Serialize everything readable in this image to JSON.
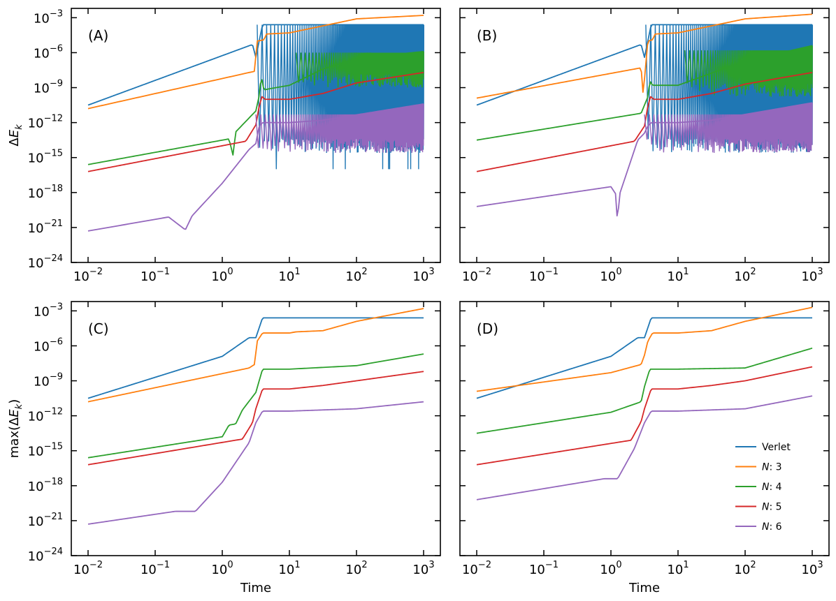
{
  "figure": {
    "shared_x_label": "Time",
    "legend": [
      {
        "label": "Verlet",
        "color": "#1f77b4"
      },
      {
        "label": "N: 3",
        "color": "#ff7f0e"
      },
      {
        "label": "N: 4",
        "color": "#2ca02c"
      },
      {
        "label": "N: 5",
        "color": "#d62728"
      },
      {
        "label": "N: 6",
        "color": "#9467bd"
      }
    ]
  },
  "chart_data": [
    {
      "panel": "(A)",
      "type": "line",
      "xscale": "log",
      "yscale": "log",
      "xlabel": "",
      "ylabel": "ΔE_k",
      "xlim_exp": [
        -2,
        3
      ],
      "ylim_exp": [
        -24,
        -2.2
      ],
      "xticks_exp": [
        -2,
        -1,
        0,
        1,
        2,
        3
      ],
      "yticks_exp": [
        -24,
        -21,
        -18,
        -15,
        -12,
        -9,
        -6,
        -3
      ],
      "oscillating": true,
      "series": [
        {
          "name": "Verlet",
          "color": "#1f77b4",
          "points": [
            [
              -2,
              -10.5
            ],
            [
              0.45,
              -5.3
            ],
            [
              0.5,
              -6.4
            ],
            [
              0.6,
              -3.6
            ],
            [
              3,
              -3.6
            ]
          ],
          "osc": {
            "start": 0.52,
            "top": -3.6,
            "bottom": -13.4,
            "deepest": -16
          }
        },
        {
          "name": "N: 3",
          "color": "#ff7f0e",
          "points": [
            [
              -2,
              -10.8
            ],
            [
              0.48,
              -7.6
            ],
            [
              0.52,
              -5.0
            ],
            [
              0.62,
              -4.9
            ],
            [
              0.66,
              -4.4
            ],
            [
              1.0,
              -4.3
            ],
            [
              1.5,
              -3.7
            ],
            [
              2.0,
              -3.1
            ],
            [
              3,
              -2.8
            ]
          ]
        },
        {
          "name": "N: 4",
          "color": "#2ca02c",
          "points": [
            [
              -2,
              -15.6
            ],
            [
              0.1,
              -13.4
            ],
            [
              0.16,
              -14.8
            ],
            [
              0.2,
              -12.8
            ],
            [
              0.5,
              -11.0
            ],
            [
              0.55,
              -9.7
            ],
            [
              0.58,
              -8.0
            ],
            [
              0.62,
              -9.2
            ],
            [
              0.7,
              -9.1
            ],
            [
              1.0,
              -8.8
            ],
            [
              1.5,
              -7.4
            ],
            [
              2.0,
              -6.5
            ],
            [
              3,
              -5.9
            ]
          ],
          "osc": {
            "start": 1.1,
            "top": -6.0,
            "bottom": -7.8
          }
        },
        {
          "name": "N: 5",
          "color": "#d62728",
          "points": [
            [
              -2,
              -16.2
            ],
            [
              0.35,
              -13.6
            ],
            [
              0.5,
              -12.2
            ],
            [
              0.55,
              -10.6
            ],
            [
              0.6,
              -9.6
            ],
            [
              0.62,
              -10.0
            ],
            [
              1.0,
              -10.0
            ],
            [
              1.5,
              -9.5
            ],
            [
              2.0,
              -8.6
            ],
            [
              3,
              -7.7
            ]
          ]
        },
        {
          "name": "N: 6",
          "color": "#9467bd",
          "points": [
            [
              -2,
              -21.3
            ],
            [
              -0.8,
              -20.1
            ],
            [
              -0.55,
              -21.2
            ],
            [
              -0.45,
              -20.0
            ],
            [
              0.0,
              -17.2
            ],
            [
              0.4,
              -14.3
            ],
            [
              0.5,
              -13.8
            ],
            [
              0.55,
              -12.3
            ],
            [
              0.6,
              -12.0
            ],
            [
              1.0,
              -12.0
            ],
            [
              1.5,
              -11.8
            ],
            [
              3,
              -10.4
            ]
          ],
          "osc": {
            "start": 0.5,
            "top": -11.3,
            "bottom": -13.4
          }
        }
      ]
    },
    {
      "panel": "(B)",
      "type": "line",
      "xscale": "log",
      "yscale": "log",
      "xlabel": "",
      "ylabel": "",
      "xlim_exp": [
        -2,
        3
      ],
      "ylim_exp": [
        -24,
        -2.2
      ],
      "xticks_exp": [
        -2,
        -1,
        0,
        1,
        2,
        3
      ],
      "yticks_exp": [
        -24,
        -21,
        -18,
        -15,
        -12,
        -9,
        -6,
        -3
      ],
      "oscillating": true,
      "series": [
        {
          "name": "Verlet",
          "color": "#1f77b4",
          "points": [
            [
              -2,
              -10.5
            ],
            [
              0.45,
              -5.3
            ],
            [
              0.5,
              -6.4
            ],
            [
              0.6,
              -3.6
            ],
            [
              3,
              -3.6
            ]
          ],
          "osc": {
            "start": 0.52,
            "top": -3.6,
            "bottom": -13.4,
            "deepest": -13.4
          }
        },
        {
          "name": "N: 3",
          "color": "#ff7f0e",
          "points": [
            [
              -2,
              -9.9
            ],
            [
              0.45,
              -7.3
            ],
            [
              0.48,
              -9.6
            ],
            [
              0.55,
              -5.0
            ],
            [
              0.62,
              -4.9
            ],
            [
              0.66,
              -4.4
            ],
            [
              1.0,
              -4.3
            ],
            [
              1.5,
              -3.7
            ],
            [
              2.0,
              -3.1
            ],
            [
              3,
              -2.7
            ]
          ]
        },
        {
          "name": "N: 4",
          "color": "#2ca02c",
          "points": [
            [
              -2,
              -13.5
            ],
            [
              0.45,
              -11.2
            ],
            [
              0.55,
              -9.8
            ],
            [
              0.58,
              -8.4
            ],
            [
              0.62,
              -8.8
            ],
            [
              1.0,
              -8.8
            ],
            [
              2.0,
              -6.7
            ],
            [
              3,
              -5.4
            ]
          ],
          "osc": {
            "start": 1.1,
            "top": -5.8,
            "bottom": -8.6
          }
        },
        {
          "name": "N: 5",
          "color": "#d62728",
          "points": [
            [
              -2,
              -16.2
            ],
            [
              0.35,
              -13.6
            ],
            [
              0.5,
              -12.3
            ],
            [
              0.55,
              -10.6
            ],
            [
              0.6,
              -9.6
            ],
            [
              0.62,
              -10.0
            ],
            [
              1.0,
              -10.0
            ],
            [
              1.5,
              -9.5
            ],
            [
              2.0,
              -8.7
            ],
            [
              3,
              -7.7
            ]
          ]
        },
        {
          "name": "N: 6",
          "color": "#9467bd",
          "points": [
            [
              -2,
              -19.2
            ],
            [
              0.0,
              -17.5
            ],
            [
              0.08,
              -18.2
            ],
            [
              0.1,
              -21.5
            ],
            [
              0.12,
              -18.3
            ],
            [
              0.4,
              -13.5
            ],
            [
              0.5,
              -12.9
            ],
            [
              0.55,
              -12.3
            ],
            [
              0.6,
              -12.0
            ],
            [
              1.0,
              -12.0
            ],
            [
              1.5,
              -11.8
            ],
            [
              3,
              -10.3
            ]
          ],
          "osc": {
            "start": 0.5,
            "top": -11.3,
            "bottom": -13.4
          }
        }
      ]
    },
    {
      "panel": "(C)",
      "type": "line",
      "xscale": "log",
      "yscale": "log",
      "xlabel": "Time",
      "ylabel": "max(ΔE_k)",
      "xlim_exp": [
        -2,
        3
      ],
      "ylim_exp": [
        -24,
        -2.2
      ],
      "xticks_exp": [
        -2,
        -1,
        0,
        1,
        2,
        3
      ],
      "yticks_exp": [
        -24,
        -21,
        -18,
        -15,
        -12,
        -9,
        -6,
        -3
      ],
      "oscillating": false,
      "series": [
        {
          "name": "Verlet",
          "color": "#1f77b4",
          "points": [
            [
              -2,
              -10.5
            ],
            [
              0,
              -6.9
            ],
            [
              0.4,
              -5.3
            ],
            [
              0.5,
              -5.3
            ],
            [
              0.6,
              -3.6
            ],
            [
              3,
              -3.6
            ]
          ]
        },
        {
          "name": "N: 3",
          "color": "#ff7f0e",
          "points": [
            [
              -2,
              -10.8
            ],
            [
              0.4,
              -7.9
            ],
            [
              0.48,
              -7.6
            ],
            [
              0.52,
              -5.6
            ],
            [
              0.6,
              -4.9
            ],
            [
              1.0,
              -4.9
            ],
            [
              1.1,
              -4.8
            ],
            [
              1.5,
              -4.7
            ],
            [
              2,
              -3.9
            ],
            [
              3,
              -2.8
            ]
          ]
        },
        {
          "name": "N: 4",
          "color": "#2ca02c",
          "points": [
            [
              -2,
              -15.6
            ],
            [
              0,
              -13.8
            ],
            [
              0.1,
              -12.8
            ],
            [
              0.2,
              -12.7
            ],
            [
              0.3,
              -11.5
            ],
            [
              0.5,
              -10.0
            ],
            [
              0.55,
              -9.0
            ],
            [
              0.6,
              -8.0
            ],
            [
              1.0,
              -8.0
            ],
            [
              2.0,
              -7.7
            ],
            [
              3,
              -6.7
            ]
          ]
        },
        {
          "name": "N: 5",
          "color": "#d62728",
          "points": [
            [
              -2,
              -16.2
            ],
            [
              0.3,
              -14.0
            ],
            [
              0.45,
              -12.6
            ],
            [
              0.5,
              -11.4
            ],
            [
              0.6,
              -9.7
            ],
            [
              1.0,
              -9.7
            ],
            [
              1.5,
              -9.4
            ],
            [
              2.0,
              -9.0
            ],
            [
              3,
              -8.2
            ]
          ]
        },
        {
          "name": "N: 6",
          "color": "#9467bd",
          "points": [
            [
              -2,
              -21.3
            ],
            [
              -0.7,
              -20.2
            ],
            [
              -0.4,
              -20.2
            ],
            [
              0.0,
              -17.7
            ],
            [
              0.4,
              -14.3
            ],
            [
              0.5,
              -12.6
            ],
            [
              0.6,
              -11.6
            ],
            [
              1.0,
              -11.6
            ],
            [
              2.0,
              -11.4
            ],
            [
              3,
              -10.8
            ]
          ]
        }
      ]
    },
    {
      "panel": "(D)",
      "type": "line",
      "xscale": "log",
      "yscale": "log",
      "xlabel": "Time",
      "ylabel": "",
      "xlim_exp": [
        -2,
        3
      ],
      "ylim_exp": [
        -24,
        -2.2
      ],
      "xticks_exp": [
        -2,
        -1,
        0,
        1,
        2,
        3
      ],
      "yticks_exp": [
        -24,
        -21,
        -18,
        -15,
        -12,
        -9,
        -6,
        -3
      ],
      "oscillating": false,
      "series": [
        {
          "name": "Verlet",
          "color": "#1f77b4",
          "points": [
            [
              -2,
              -10.5
            ],
            [
              0,
              -6.9
            ],
            [
              0.4,
              -5.3
            ],
            [
              0.5,
              -5.3
            ],
            [
              0.6,
              -3.6
            ],
            [
              3,
              -3.6
            ]
          ]
        },
        {
          "name": "N: 3",
          "color": "#ff7f0e",
          "points": [
            [
              -2,
              -9.9
            ],
            [
              0,
              -8.3
            ],
            [
              0.45,
              -7.6
            ],
            [
              0.5,
              -6.8
            ],
            [
              0.55,
              -5.6
            ],
            [
              0.62,
              -4.9
            ],
            [
              1.0,
              -4.9
            ],
            [
              1.5,
              -4.7
            ],
            [
              2.0,
              -3.9
            ],
            [
              3,
              -2.7
            ]
          ]
        },
        {
          "name": "N: 4",
          "color": "#2ca02c",
          "points": [
            [
              -2,
              -13.5
            ],
            [
              0,
              -11.7
            ],
            [
              0.45,
              -10.8
            ],
            [
              0.5,
              -9.5
            ],
            [
              0.58,
              -8.0
            ],
            [
              1.0,
              -8.0
            ],
            [
              2.0,
              -7.9
            ],
            [
              3,
              -6.2
            ]
          ]
        },
        {
          "name": "N: 5",
          "color": "#d62728",
          "points": [
            [
              -2,
              -16.2
            ],
            [
              0.3,
              -14.1
            ],
            [
              0.45,
              -12.5
            ],
            [
              0.5,
              -11.4
            ],
            [
              0.6,
              -9.7
            ],
            [
              1.0,
              -9.7
            ],
            [
              1.5,
              -9.4
            ],
            [
              2.0,
              -9.0
            ],
            [
              3,
              -7.8
            ]
          ]
        },
        {
          "name": "N: 6",
          "color": "#9467bd",
          "points": [
            [
              -2,
              -19.2
            ],
            [
              -0.1,
              -17.4
            ],
            [
              0.1,
              -17.4
            ],
            [
              0.35,
              -14.8
            ],
            [
              0.5,
              -12.6
            ],
            [
              0.6,
              -11.6
            ],
            [
              1.0,
              -11.6
            ],
            [
              2.0,
              -11.4
            ],
            [
              3,
              -10.3
            ]
          ]
        }
      ]
    }
  ]
}
